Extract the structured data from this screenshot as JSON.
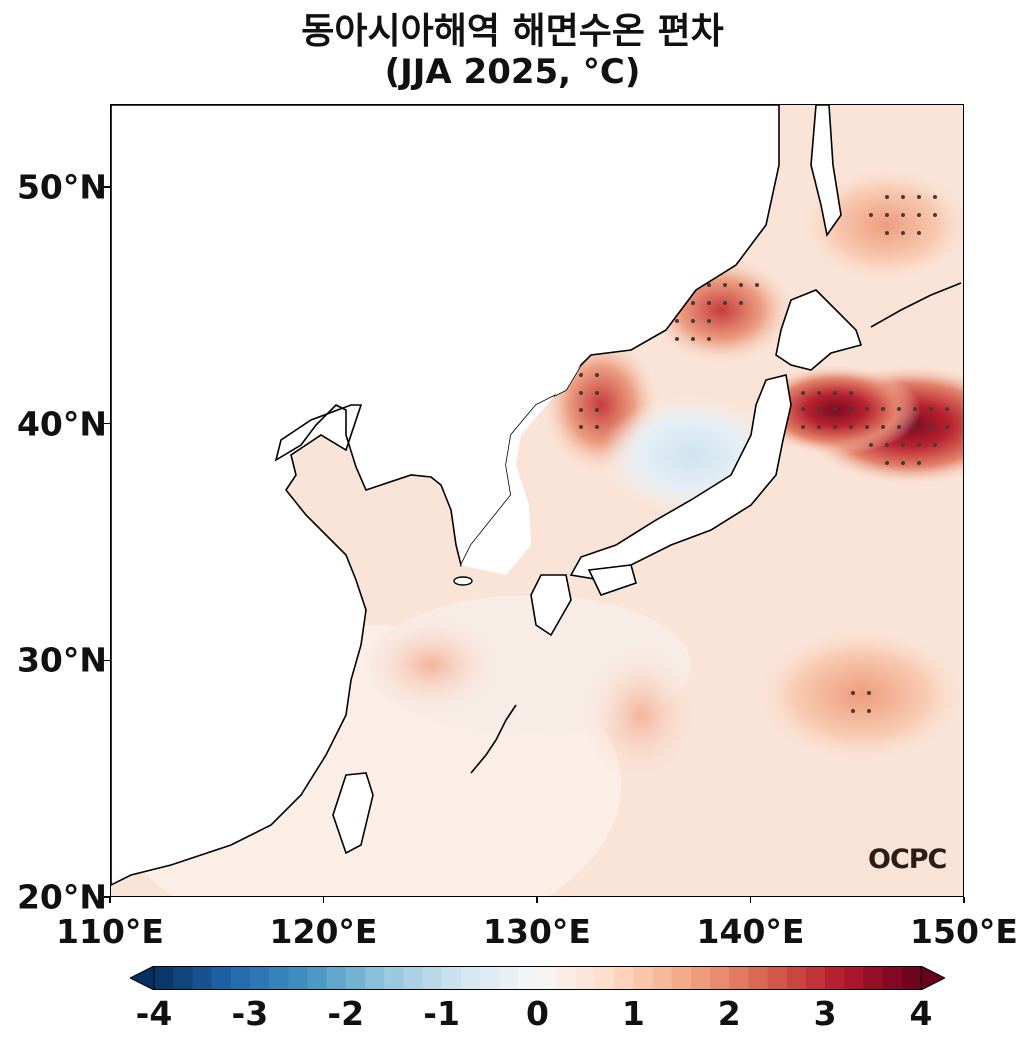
{
  "title": {
    "line1": "동아시아해역 해면수온 편차",
    "line2": "(JJA 2025, °C)"
  },
  "logo": "OCPC",
  "axes": {
    "x_ticks": [
      {
        "value": 110,
        "label": "110°E"
      },
      {
        "value": 120,
        "label": "120°E"
      },
      {
        "value": 130,
        "label": "130°E"
      },
      {
        "value": 140,
        "label": "140°E"
      },
      {
        "value": 150,
        "label": "150°E"
      }
    ],
    "y_ticks": [
      {
        "value": 20,
        "label": "20°N"
      },
      {
        "value": 30,
        "label": "30°N"
      },
      {
        "value": 40,
        "label": "40°N"
      },
      {
        "value": 50,
        "label": "50°N"
      }
    ],
    "lon_range": [
      110,
      150
    ],
    "lat_range": [
      20,
      53.5
    ]
  },
  "colorbar": {
    "range": [
      -4,
      4
    ],
    "ticks": [
      {
        "value": -4,
        "label": "-4"
      },
      {
        "value": -3,
        "label": "-3"
      },
      {
        "value": -2,
        "label": "-2"
      },
      {
        "value": -1,
        "label": "-1"
      },
      {
        "value": 0,
        "label": "0"
      },
      {
        "value": 1,
        "label": "1"
      },
      {
        "value": 2,
        "label": "2"
      },
      {
        "value": 3,
        "label": "3"
      },
      {
        "value": 4,
        "label": "4"
      }
    ],
    "colormap": "RdBu_r",
    "extend": "both"
  },
  "anomaly_regions": [
    {
      "name": "east-of-tohoku-hotspot",
      "lon": 144.5,
      "lat": 40.6,
      "value": 4.0
    },
    {
      "name": "kuril-extension",
      "lon": 148.0,
      "lat": 40.0,
      "value": 3.2
    },
    {
      "name": "north-east-sea-of-japan",
      "lon": 138.3,
      "lat": 45.0,
      "value": 2.4
    },
    {
      "name": "east-korea-coast",
      "lon": 132.5,
      "lat": 41.2,
      "value": 1.9
    },
    {
      "name": "okhotsk-sea",
      "lon": 147.0,
      "lat": 49.0,
      "value": 1.8
    },
    {
      "name": "subtropical-pacific",
      "lon": 145.5,
      "lat": 28.0,
      "value": 1.5
    },
    {
      "name": "east-china-sea",
      "lon": 125.0,
      "lat": 30.5,
      "value": 1.0
    },
    {
      "name": "central-sea-of-japan",
      "lon": 137.0,
      "lat": 39.0,
      "value": -0.5
    }
  ]
}
